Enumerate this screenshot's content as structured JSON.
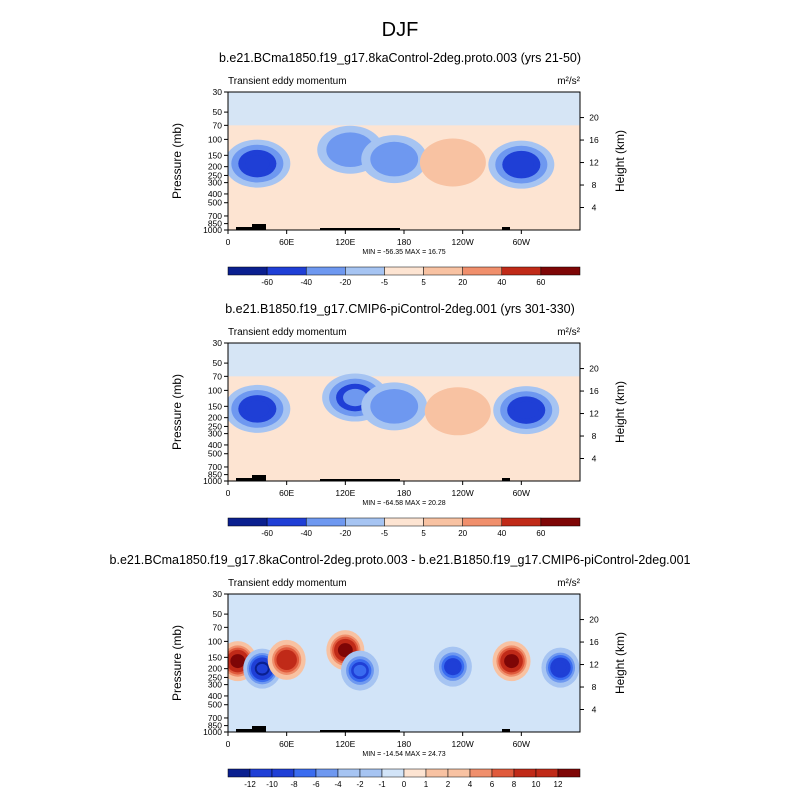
{
  "main_title": "DJF",
  "palette_colors": [
    "#0a1f8f",
    "#1f3fd6",
    "#3a6cf0",
    "#6e98f0",
    "#a6c4f2",
    "#d2e4f8",
    "#fde4d2",
    "#f8c2a2",
    "#f08f6c",
    "#e05a3c",
    "#c02a18",
    "#7e0606"
  ],
  "panels": [
    {
      "title": "b.e21.BCma1850.f19_g17.8kaControl-2deg.proto.003 (yrs 21-50)",
      "left_label": "Transient eddy momentum",
      "units": "m²/s²",
      "ylabel_left": "Pressure (mb)",
      "ylabel_right": "Height (km)",
      "stats": "MIN = -56.35   MAX =  16.75",
      "colorbar_labels": [
        "-60",
        "-40",
        "-20",
        "-5",
        "5",
        "20",
        "40",
        "60"
      ]
    },
    {
      "title": "b.e21.B1850.f19_g17.CMIP6-piControl-2deg.001 (yrs 301-330)",
      "left_label": "Transient eddy momentum",
      "units": "m²/s²",
      "ylabel_left": "Pressure (mb)",
      "ylabel_right": "Height (km)",
      "stats": "MIN = -64.58   MAX =  20.28",
      "colorbar_labels": [
        "-60",
        "-40",
        "-20",
        "-5",
        "5",
        "20",
        "40",
        "60"
      ]
    },
    {
      "title": "b.e21.BCma1850.f19_g17.8kaControl-2deg.proto.003 - b.e21.B1850.f19_g17.CMIP6-piControl-2deg.001",
      "left_label": "Transient eddy momentum",
      "units": "m²/s²",
      "ylabel_left": "Pressure (mb)",
      "ylabel_right": "Height (km)",
      "stats": "MIN = -14.54   MAX =  24.73",
      "colorbar_labels": [
        "-12",
        "-10",
        "-8",
        "-6",
        "-4",
        "-2",
        "-1",
        "0",
        "1",
        "2",
        "4",
        "6",
        "8",
        "10",
        "12"
      ]
    }
  ],
  "chart_data": [
    {
      "type": "heatmap",
      "title": "b.e21.BCma1850.f19_g17.8kaControl-2deg.proto.003 (yrs 21-50)",
      "variable": "Transient eddy momentum",
      "units": "m²/s²",
      "x_ticks": [
        "0",
        "60E",
        "120E",
        "180",
        "120W",
        "60W"
      ],
      "y_ticks_pressure_mb": [
        "30",
        "50",
        "70",
        "100",
        "150",
        "200",
        "250",
        "300",
        "400",
        "500",
        "700",
        "850",
        "1000"
      ],
      "y_ticks_height_km": [
        "4",
        "8",
        "12",
        "16",
        "20"
      ],
      "xlim_deg_east": [
        0,
        360
      ],
      "ylim_mb": [
        1000,
        30
      ],
      "color_levels": [
        -60,
        -40,
        -20,
        -5,
        5,
        20,
        40,
        60
      ],
      "min": -56.35,
      "max": 16.75,
      "features": [
        {
          "lon": 30,
          "p": 185,
          "value": -45
        },
        {
          "lon": 125,
          "p": 130,
          "value": -35
        },
        {
          "lon": 170,
          "p": 165,
          "value": -28
        },
        {
          "lon": 230,
          "p": 180,
          "value": 12
        },
        {
          "lon": 300,
          "p": 190,
          "value": -50
        }
      ]
    },
    {
      "type": "heatmap",
      "title": "b.e21.B1850.f19_g17.CMIP6-piControl-2deg.001 (yrs 301-330)",
      "variable": "Transient eddy momentum",
      "units": "m²/s²",
      "x_ticks": [
        "0",
        "60E",
        "120E",
        "180",
        "120W",
        "60W"
      ],
      "y_ticks_pressure_mb": [
        "30",
        "50",
        "70",
        "100",
        "150",
        "200",
        "250",
        "300",
        "400",
        "500",
        "700",
        "850",
        "1000"
      ],
      "y_ticks_height_km": [
        "4",
        "8",
        "12",
        "16",
        "20"
      ],
      "xlim_deg_east": [
        0,
        360
      ],
      "ylim_mb": [
        1000,
        30
      ],
      "color_levels": [
        -60,
        -40,
        -20,
        -5,
        5,
        20,
        40,
        60
      ],
      "min": -64.58,
      "max": 20.28,
      "features": [
        {
          "lon": 30,
          "p": 160,
          "value": -48
        },
        {
          "lon": 130,
          "p": 120,
          "value": -40
        },
        {
          "lon": 170,
          "p": 150,
          "value": -25
        },
        {
          "lon": 235,
          "p": 170,
          "value": 15
        },
        {
          "lon": 305,
          "p": 165,
          "value": -58
        }
      ]
    },
    {
      "type": "heatmap",
      "title": "b.e21.BCma1850.f19_g17.8kaControl-2deg.proto.003 - b.e21.B1850.f19_g17.CMIP6-piControl-2deg.001",
      "variable": "Transient eddy momentum",
      "units": "m²/s²",
      "x_ticks": [
        "0",
        "60E",
        "120E",
        "180",
        "120W",
        "60W"
      ],
      "y_ticks_pressure_mb": [
        "30",
        "50",
        "70",
        "100",
        "150",
        "200",
        "250",
        "300",
        "400",
        "500",
        "700",
        "850",
        "1000"
      ],
      "y_ticks_height_km": [
        "4",
        "8",
        "12",
        "16",
        "20"
      ],
      "xlim_deg_east": [
        0,
        360
      ],
      "ylim_mb": [
        1000,
        30
      ],
      "color_levels": [
        -12,
        -10,
        -8,
        -6,
        -4,
        -2,
        -1,
        0,
        1,
        2,
        4,
        6,
        8,
        10,
        12
      ],
      "min": -14.54,
      "max": 24.73,
      "features": [
        {
          "lon": 10,
          "p": 165,
          "value": 16
        },
        {
          "lon": 35,
          "p": 200,
          "value": -12
        },
        {
          "lon": 60,
          "p": 160,
          "value": 10
        },
        {
          "lon": 120,
          "p": 125,
          "value": 12
        },
        {
          "lon": 135,
          "p": 210,
          "value": -8
        },
        {
          "lon": 230,
          "p": 190,
          "value": -9
        },
        {
          "lon": 290,
          "p": 165,
          "value": 22
        },
        {
          "lon": 340,
          "p": 195,
          "value": -11
        }
      ]
    }
  ]
}
